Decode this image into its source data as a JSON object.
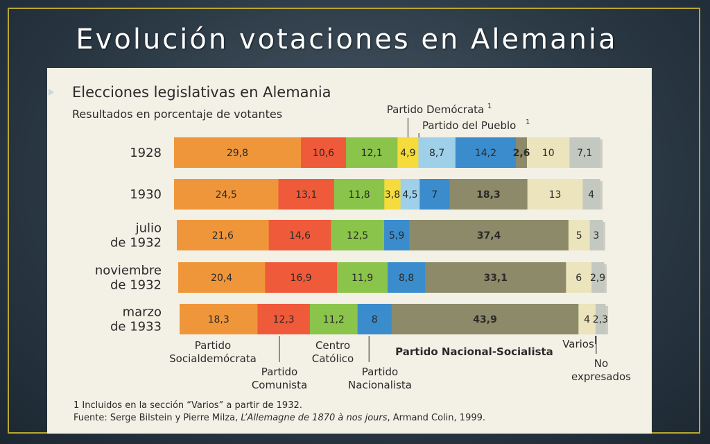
{
  "slide": {
    "title": "Evolución votaciones en Alemania"
  },
  "chart_data": {
    "type": "bar",
    "orientation": "horizontal-stacked-100",
    "title": "Elecciones legislativas en Alemania",
    "subtitle": "Resultados en porcentaje de votantes",
    "categories": [
      [
        "1928"
      ],
      [
        "1930"
      ],
      [
        "julio",
        "de 1932"
      ],
      [
        "noviembre",
        "de 1932"
      ],
      [
        "marzo",
        "de 1933"
      ]
    ],
    "series": [
      {
        "name": "Partido Socialdemócrata",
        "color": "#f0963a",
        "values": [
          29.8,
          24.5,
          21.6,
          20.4,
          18.3
        ],
        "labels": [
          "29,8",
          "24,5",
          "21,6",
          "20,4",
          "18,3"
        ]
      },
      {
        "name": "Partido Comunista",
        "color": "#ef5a3a",
        "values": [
          10.6,
          13.1,
          14.6,
          16.9,
          12.3
        ],
        "labels": [
          "10,6",
          "13,1",
          "14,6",
          "16,9",
          "12,3"
        ]
      },
      {
        "name": "Centro Católico",
        "color": "#8ac44a",
        "values": [
          12.1,
          11.8,
          12.5,
          11.9,
          11.2
        ],
        "labels": [
          "12,1",
          "11,8",
          "12,5",
          "11,9",
          "11,2"
        ]
      },
      {
        "name": "Partido Demócrata",
        "color": "#f5dc3c",
        "values": [
          4.9,
          3.8,
          0,
          0,
          0
        ],
        "labels": [
          "4,9",
          "3,8",
          "",
          "",
          ""
        ]
      },
      {
        "name": "Partido del Pueblo",
        "color": "#9fd0ea",
        "values": [
          8.7,
          4.5,
          0,
          0,
          0
        ],
        "labels": [
          "8,7",
          "4,5",
          "",
          "",
          ""
        ]
      },
      {
        "name": "Partido Nacionalista",
        "color": "#3a8ccc",
        "values": [
          14.2,
          7,
          5.9,
          8.8,
          8
        ],
        "labels": [
          "14,2",
          "7",
          "5,9",
          "8,8",
          "8"
        ]
      },
      {
        "name": "Partido Nacional-Socialista",
        "color": "#8c8a68",
        "values": [
          2.6,
          18.3,
          37.4,
          33.1,
          43.9
        ],
        "labels": [
          "2,6",
          "18,3",
          "37,4",
          "33,1",
          "43,9"
        ]
      },
      {
        "name": "Varios",
        "color": "#ebe4bc",
        "values": [
          10,
          13,
          5,
          6,
          4
        ],
        "labels": [
          "10",
          "13",
          "5",
          "6",
          "4"
        ]
      },
      {
        "name": "No expresados",
        "color": "#c3c9c0",
        "values": [
          7.1,
          4,
          3,
          2.9,
          2.3
        ],
        "labels": [
          "7,1",
          "4",
          "3",
          "2,9",
          "2,3"
        ]
      }
    ],
    "bold_labels": [
      "Partido Nacional-Socialista"
    ],
    "annotations": {
      "socialdemocrata": [
        "Partido",
        "Socialdemócrata"
      ],
      "comunista": [
        "Partido",
        "Comunista"
      ],
      "centro": [
        "Centro",
        "Católico"
      ],
      "nacionalista": [
        "Partido",
        "Nacionalista"
      ],
      "nacional_socialista": "Partido Nacional-Socialista",
      "varios": "Varios",
      "no_expresados": [
        "No",
        "expresados"
      ],
      "democrata": "Partido Demócrata",
      "pueblo": "Partido del Pueblo",
      "footnote_mark": "1"
    },
    "footnote": "1 Incluidos en la sección “Varios” a partir de 1932.",
    "source_prefix": "Fuente: Serge Bilstein y Pierre Milza, ",
    "source_italic": "L’Allemagne de 1870 à nos jours",
    "source_suffix": ", Armand Colin, 1999."
  }
}
